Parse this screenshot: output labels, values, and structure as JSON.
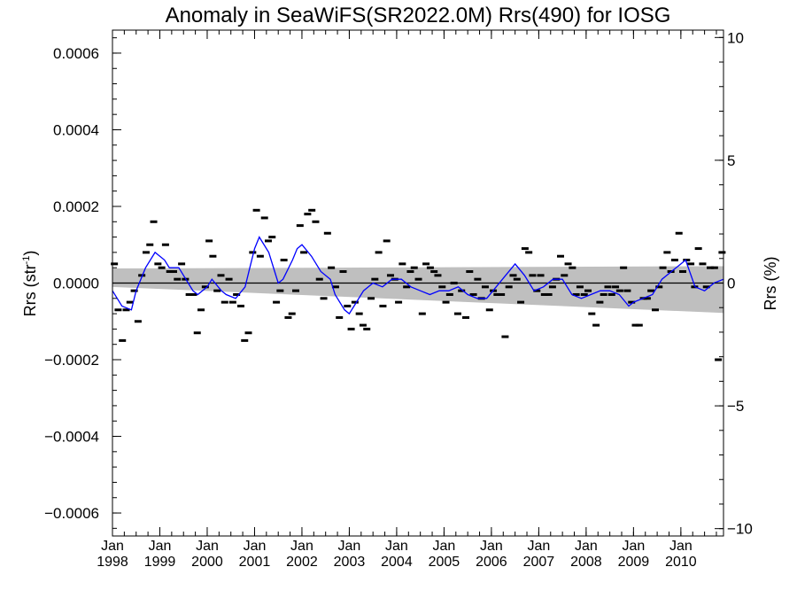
{
  "chart_data": {
    "type": "scatter",
    "title": "Anomaly in SeaWiFS(SR2022.0M) Rrs(490) for IOSG",
    "ylabel_left": "Rrs (str",
    "ylabel_left_sup": "-1",
    "ylabel_left_close": ")",
    "ylabel_right": "Rrs (%)",
    "xlim": [
      1998.0,
      2010.9
    ],
    "ylim": [
      -0.00066,
      0.00066
    ],
    "y2lim": [
      -10.3,
      10.3
    ],
    "grid": false,
    "legend": "none",
    "x_ticks": [
      {
        "value": 1998,
        "month": "Jan",
        "year": "1998"
      },
      {
        "value": 1999,
        "month": "Jan",
        "year": "1999"
      },
      {
        "value": 2000,
        "month": "Jan",
        "year": "2000"
      },
      {
        "value": 2001,
        "month": "Jan",
        "year": "2001"
      },
      {
        "value": 2002,
        "month": "Jan",
        "year": "2002"
      },
      {
        "value": 2003,
        "month": "Jan",
        "year": "2003"
      },
      {
        "value": 2004,
        "month": "Jan",
        "year": "2004"
      },
      {
        "value": 2005,
        "month": "Jan",
        "year": "2005"
      },
      {
        "value": 2006,
        "month": "Jan",
        "year": "2006"
      },
      {
        "value": 2007,
        "month": "Jan",
        "year": "2007"
      },
      {
        "value": 2008,
        "month": "Jan",
        "year": "2008"
      },
      {
        "value": 2009,
        "month": "Jan",
        "year": "2009"
      },
      {
        "value": 2010,
        "month": "Jan",
        "year": "2010"
      }
    ],
    "y_ticks": [
      {
        "value": -0.0006,
        "label": "−0.0006"
      },
      {
        "value": -0.0004,
        "label": "−0.0004"
      },
      {
        "value": -0.0002,
        "label": "−0.0002"
      },
      {
        "value": 0.0,
        "label": "0.0000"
      },
      {
        "value": 0.0002,
        "label": "0.0002"
      },
      {
        "value": 0.0004,
        "label": "0.0004"
      },
      {
        "value": 0.0006,
        "label": "0.0006"
      }
    ],
    "y2_ticks": [
      {
        "value": -10,
        "label": "−10"
      },
      {
        "value": -5,
        "label": "−5"
      },
      {
        "value": 0,
        "label": "0"
      },
      {
        "value": 5,
        "label": "5"
      },
      {
        "value": 10,
        "label": "10"
      }
    ],
    "colors": {
      "points": "#000000",
      "running_mean": "#0000ff",
      "band": "#bfbfbf",
      "zero_line": "#000000"
    },
    "trend_band": {
      "x": [
        1998.0,
        2010.9
      ],
      "upper": [
        3.8e-05,
        4.4e-05
      ],
      "lower": [
        -1e-05,
        -7.8e-05
      ]
    },
    "monthly_anomalies": {
      "x": [
        1998.04,
        1998.12,
        1998.21,
        1998.29,
        1998.37,
        1998.46,
        1998.54,
        1998.62,
        1998.71,
        1998.79,
        1998.87,
        1998.96,
        1999.04,
        1999.12,
        1999.21,
        1999.29,
        1999.37,
        1999.46,
        1999.54,
        1999.62,
        1999.71,
        1999.79,
        1999.87,
        1999.96,
        2000.04,
        2000.12,
        2000.21,
        2000.29,
        2000.37,
        2000.46,
        2000.54,
        2000.62,
        2000.71,
        2000.79,
        2000.87,
        2000.96,
        2001.04,
        2001.12,
        2001.21,
        2001.29,
        2001.37,
        2001.46,
        2001.54,
        2001.62,
        2001.71,
        2001.79,
        2001.87,
        2001.96,
        2002.04,
        2002.12,
        2002.21,
        2002.29,
        2002.37,
        2002.46,
        2002.54,
        2002.62,
        2002.71,
        2002.79,
        2002.87,
        2002.96,
        2003.04,
        2003.12,
        2003.21,
        2003.29,
        2003.37,
        2003.46,
        2003.54,
        2003.62,
        2003.71,
        2003.79,
        2003.87,
        2003.96,
        2004.04,
        2004.12,
        2004.21,
        2004.29,
        2004.37,
        2004.46,
        2004.54,
        2004.62,
        2004.71,
        2004.79,
        2004.87,
        2004.96,
        2005.04,
        2005.12,
        2005.21,
        2005.29,
        2005.37,
        2005.46,
        2005.54,
        2005.62,
        2005.71,
        2005.79,
        2005.87,
        2005.96,
        2006.04,
        2006.12,
        2006.21,
        2006.29,
        2006.37,
        2006.46,
        2006.54,
        2006.62,
        2006.71,
        2006.79,
        2006.87,
        2006.96,
        2007.04,
        2007.12,
        2007.21,
        2007.29,
        2007.37,
        2007.46,
        2007.54,
        2007.62,
        2007.71,
        2007.79,
        2007.87,
        2007.96,
        2008.04,
        2008.12,
        2008.21,
        2008.29,
        2008.37,
        2008.46,
        2008.54,
        2008.62,
        2008.71,
        2008.79,
        2008.87,
        2008.96,
        2009.04,
        2009.12,
        2009.21,
        2009.29,
        2009.37,
        2009.46,
        2009.54,
        2009.62,
        2009.71,
        2009.79,
        2009.87,
        2009.96,
        2010.04,
        2010.12,
        2010.21,
        2010.29,
        2010.37,
        2010.46,
        2010.54,
        2010.62,
        2010.71,
        2010.79,
        2010.87
      ],
      "y": [
        5e-05,
        -7e-05,
        -0.00015,
        -7e-05,
        -5e-05,
        -2e-05,
        -0.0001,
        2e-05,
        8e-05,
        0.0001,
        0.00016,
        5e-05,
        4e-05,
        0.0001,
        3e-05,
        3e-05,
        1e-05,
        5e-05,
        1e-05,
        -3e-05,
        -3e-05,
        -0.00013,
        -7e-05,
        -1e-05,
        0.00011,
        7e-05,
        -2e-05,
        2e-05,
        -5e-05,
        1e-05,
        -5e-05,
        -3e-05,
        -6e-05,
        -0.00015,
        -0.00013,
        8e-05,
        0.00019,
        7e-05,
        0.00017,
        0.00011,
        0.00012,
        -5e-05,
        -2e-05,
        6e-05,
        -9e-05,
        -8e-05,
        -2e-05,
        0.00015,
        8e-05,
        0.00018,
        0.00019,
        0.00016,
        1e-05,
        -4e-05,
        0.00013,
        4e-05,
        -1e-05,
        -9e-05,
        3e-05,
        -6e-05,
        -0.00012,
        -5e-05,
        -8e-05,
        -0.00011,
        -0.00012,
        -4e-05,
        1e-05,
        8e-05,
        -6e-05,
        0.00011,
        2e-05,
        1e-05,
        -5e-05,
        5e-05,
        -1e-05,
        3e-05,
        4e-05,
        1e-05,
        -8e-05,
        5e-05,
        4e-05,
        3e-05,
        2e-05,
        -1e-05,
        -5e-05,
        -3e-05,
        0.0,
        -8e-05,
        -2e-05,
        -9e-05,
        3e-05,
        -3e-05,
        1e-05,
        -4e-05,
        -1e-05,
        -7e-05,
        -2e-05,
        -3e-05,
        -3e-05,
        -0.00014,
        -1e-05,
        2e-05,
        1e-05,
        -5e-05,
        9e-05,
        8e-05,
        2e-05,
        -2e-05,
        2e-05,
        -3e-05,
        -3e-05,
        -1e-05,
        1e-05,
        7e-05,
        2e-05,
        5e-05,
        4e-05,
        -3e-05,
        -1e-05,
        -3e-05,
        -2e-05,
        -8e-05,
        -0.00011,
        -5e-05,
        -3e-05,
        -1e-05,
        -3e-05,
        -1e-05,
        -2e-05,
        4e-05,
        -2e-05,
        -5e-05,
        -0.00011,
        -0.00011,
        -4e-05,
        -4e-05,
        -2e-05,
        -7e-05,
        -1e-05,
        4e-05,
        8e-05,
        3e-05,
        6e-05,
        0.00013,
        3e-05,
        6e-05,
        5e-05,
        -1e-05,
        9e-05,
        5e-05,
        -1e-05,
        4e-05,
        4e-05,
        -0.0002,
        8e-05
      ]
    },
    "running_mean": {
      "x": [
        1998.0,
        1998.2,
        1998.4,
        1998.5,
        1998.7,
        1998.9,
        1999.1,
        1999.2,
        1999.4,
        1999.5,
        1999.7,
        1999.8,
        2000.0,
        2000.1,
        2000.3,
        2000.4,
        2000.6,
        2000.8,
        2000.9,
        2001.0,
        2001.1,
        2001.3,
        2001.5,
        2001.6,
        2001.8,
        2001.9,
        2002.0,
        2002.2,
        2002.4,
        2002.6,
        2002.7,
        2002.9,
        2003.0,
        2003.1,
        2003.3,
        2003.5,
        2003.7,
        2003.9,
        2004.1,
        2004.3,
        2004.5,
        2004.7,
        2004.9,
        2005.1,
        2005.3,
        2005.5,
        2005.7,
        2005.9,
        2006.1,
        2006.3,
        2006.5,
        2006.7,
        2006.9,
        2007.1,
        2007.3,
        2007.5,
        2007.7,
        2007.9,
        2008.1,
        2008.3,
        2008.5,
        2008.7,
        2008.9,
        2009.0,
        2009.2,
        2009.4,
        2009.6,
        2009.8,
        2010.0,
        2010.1,
        2010.3,
        2010.5,
        2010.7,
        2010.9
      ],
      "y": [
        -2e-05,
        -6e-05,
        -7e-05,
        -2e-05,
        4e-05,
        8e-05,
        6e-05,
        4e-05,
        4e-05,
        2e-05,
        -2e-05,
        -3e-05,
        -1e-05,
        1e-05,
        -2e-05,
        -3e-05,
        -4e-05,
        -1e-05,
        4e-05,
        9e-05,
        0.00012,
        8e-05,
        0.0,
        1e-05,
        6e-05,
        9e-05,
        0.0001,
        7e-05,
        3e-05,
        1e-05,
        -3e-05,
        -7e-05,
        -8e-05,
        -6e-05,
        -2e-05,
        0.0,
        -1e-05,
        1e-05,
        1e-05,
        -1e-05,
        -2e-05,
        -3e-05,
        -2e-05,
        -2e-05,
        -1e-05,
        -3e-05,
        -4e-05,
        -4e-05,
        -1e-05,
        2e-05,
        5e-05,
        2e-05,
        -2e-05,
        -1e-05,
        1e-05,
        1e-05,
        -3e-05,
        -4e-05,
        -3e-05,
        -2e-05,
        -2e-05,
        -3e-05,
        -6e-05,
        -5e-05,
        -4e-05,
        -3e-05,
        1e-05,
        3e-05,
        5e-05,
        6e-05,
        -1e-05,
        -2e-05,
        0.0,
        1e-05
      ]
    }
  }
}
